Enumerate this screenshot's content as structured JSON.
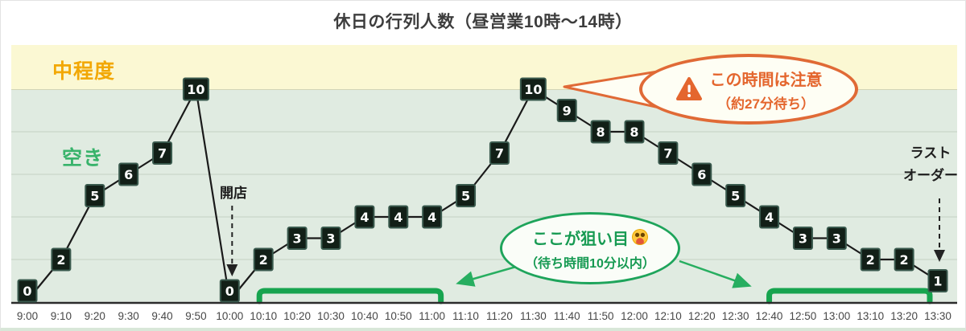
{
  "title": "休日の行列人数（昼営業10時〜14時）",
  "zone_labels": {
    "moderate": "中程度",
    "free": "空き"
  },
  "annotations": {
    "opening": {
      "text": "開店",
      "anchor": "10:00"
    },
    "last_order": {
      "line1": "ラスト",
      "line2": "オーダー",
      "anchor": "13:30"
    },
    "warning_callout": {
      "line1": "この時間は注意",
      "line2": "（約27分待ち）",
      "anchor": "11:30",
      "icon": "warning-triangle-icon"
    },
    "target_callout": {
      "line1": "ここが狙い目",
      "emoji": "😋",
      "line2": "（待ち時間10分以内）"
    }
  },
  "colors": {
    "band_moderate": "#fbf8d3",
    "band_free": "#e0ebe1",
    "gridline": "#c4d1c4",
    "axis": "#2b2b2b",
    "line": "#1a1a1a",
    "point_box_bg": "#121f17",
    "point_box_border": "#3a5a4e",
    "point_box_text": "#ffffff",
    "accent_orange": "#e4662e",
    "accent_green": "#17a44f",
    "zone_moderate_text": "#f2a805",
    "zone_free_text": "#38b36b",
    "tick_text": "#474747"
  },
  "chart_data": {
    "type": "line",
    "title": "休日の行列人数（昼営業10時〜14時）",
    "x": [
      "9:00",
      "9:10",
      "9:20",
      "9:30",
      "9:40",
      "9:50",
      "10:00",
      "10:10",
      "10:20",
      "10:30",
      "10:40",
      "10:50",
      "11:00",
      "11:10",
      "11:20",
      "11:30",
      "11:40",
      "11:50",
      "12:00",
      "12:10",
      "12:20",
      "12:30",
      "12:40",
      "12:50",
      "13:00",
      "13:10",
      "13:20",
      "13:30"
    ],
    "values": [
      0,
      2,
      5,
      6,
      7,
      10,
      0,
      2,
      3,
      3,
      4,
      4,
      4,
      5,
      7,
      10,
      9,
      8,
      8,
      7,
      6,
      5,
      4,
      3,
      3,
      2,
      2,
      1
    ],
    "ylim": [
      0,
      12
    ],
    "grid": true,
    "legend": false,
    "bands": [
      {
        "label": "中程度",
        "from": 10,
        "to": 12,
        "color": "#fbf8d3"
      },
      {
        "label": "空き",
        "from": 0,
        "to": 10,
        "color": "#e0ebe1"
      }
    ],
    "highlight_ranges": [
      {
        "from": "10:10",
        "to": "11:00"
      },
      {
        "from": "12:40",
        "to": "13:30"
      }
    ],
    "peaks_annotated": [
      "9:50",
      "11:30"
    ]
  }
}
